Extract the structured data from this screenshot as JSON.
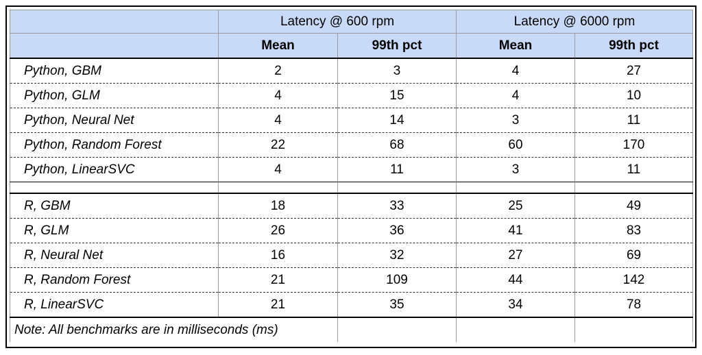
{
  "header": {
    "group_labels": [
      "Latency @ 600 rpm",
      "Latency @ 6000 rpm"
    ],
    "column_labels": [
      "Mean",
      "99th pct",
      "Mean",
      "99th pct"
    ]
  },
  "sections": [
    {
      "rows": [
        {
          "label": "Python, GBM",
          "values": [
            2,
            3,
            4,
            27
          ]
        },
        {
          "label": "Python, GLM",
          "values": [
            4,
            15,
            4,
            10
          ]
        },
        {
          "label": "Python, Neural Net",
          "values": [
            4,
            14,
            3,
            11
          ]
        },
        {
          "label": "Python, Random Forest",
          "values": [
            22,
            68,
            60,
            170
          ]
        },
        {
          "label": "Python, LinearSVC",
          "values": [
            4,
            11,
            3,
            11
          ]
        }
      ]
    },
    {
      "rows": [
        {
          "label": "R, GBM",
          "values": [
            18,
            33,
            25,
            49
          ]
        },
        {
          "label": "R, GLM",
          "values": [
            26,
            36,
            41,
            83
          ]
        },
        {
          "label": "R, Neural Net",
          "values": [
            16,
            32,
            27,
            69
          ]
        },
        {
          "label": "R, Random Forest",
          "values": [
            21,
            109,
            44,
            142
          ]
        },
        {
          "label": "R, LinearSVC",
          "values": [
            21,
            35,
            34,
            78
          ]
        }
      ]
    }
  ],
  "note": "Note: All benchmarks are in milliseconds (ms)"
}
